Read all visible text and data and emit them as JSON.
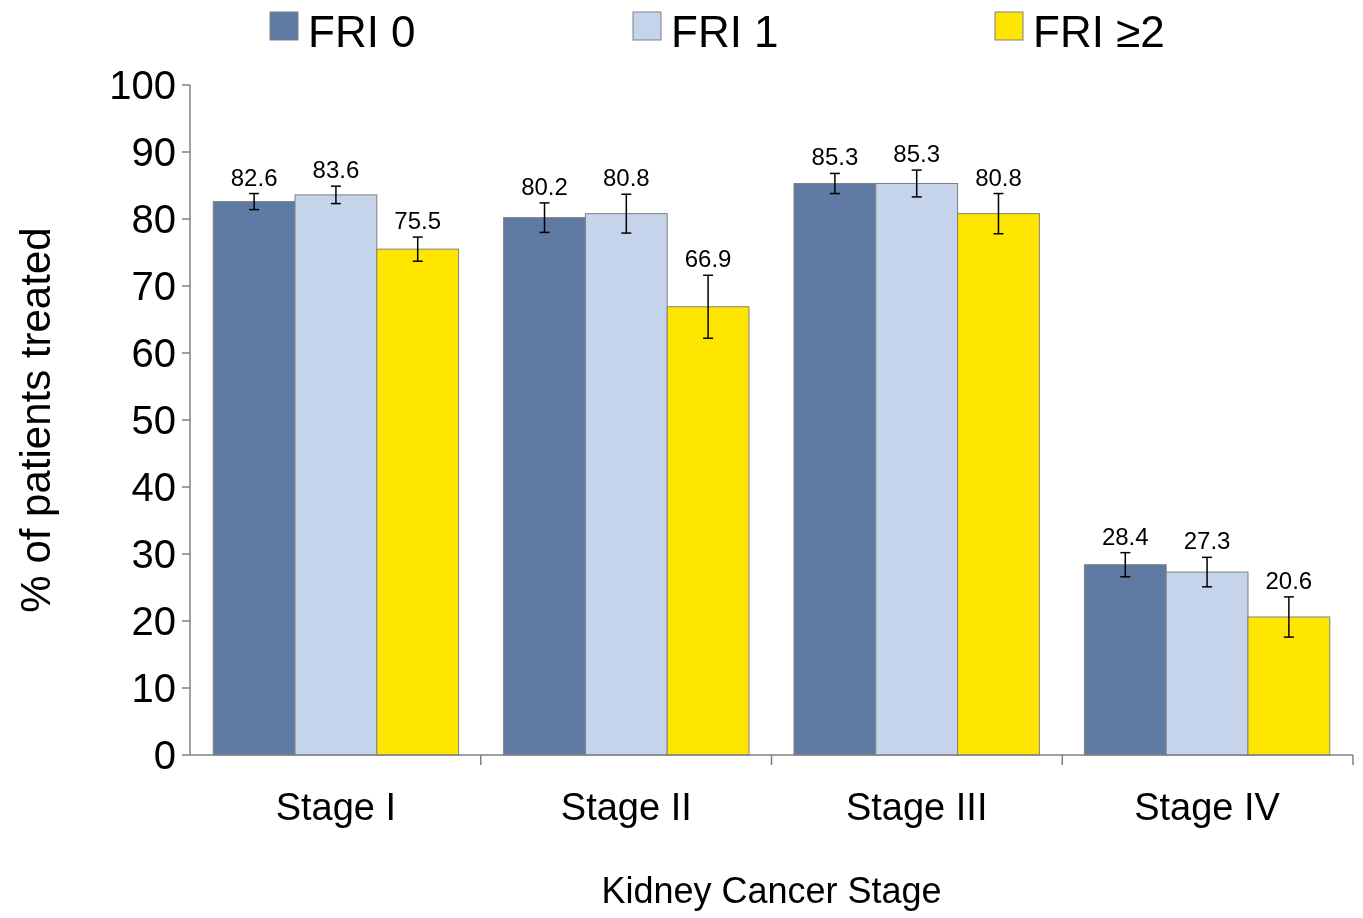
{
  "chart_data": {
    "type": "bar",
    "xlabel": "Kidney Cancer Stage",
    "ylabel": "% of patients treated",
    "categories": [
      "Stage I",
      "Stage II",
      "Stage III",
      "Stage IV"
    ],
    "series": [
      {
        "name": "FRI 0",
        "color": "#5f7aa3",
        "values": [
          82.6,
          80.2,
          85.3,
          28.4
        ],
        "errors": [
          1.2,
          2.2,
          1.5,
          1.8
        ]
      },
      {
        "name": "FRI 1",
        "color": "#c5d4ea",
        "values": [
          83.6,
          80.8,
          85.3,
          27.3
        ],
        "errors": [
          1.3,
          2.9,
          2.0,
          2.2
        ]
      },
      {
        "name": "FRI ≥2",
        "color": "#ffe600",
        "values": [
          75.5,
          66.9,
          80.8,
          20.6
        ],
        "errors": [
          1.8,
          4.7,
          3.0,
          3.0
        ]
      }
    ],
    "ylim": [
      0,
      100
    ],
    "yticks": [
      0,
      10,
      20,
      30,
      40,
      50,
      60,
      70,
      80,
      90,
      100
    ],
    "data_labels": true,
    "legend": "top",
    "grid": false
  }
}
